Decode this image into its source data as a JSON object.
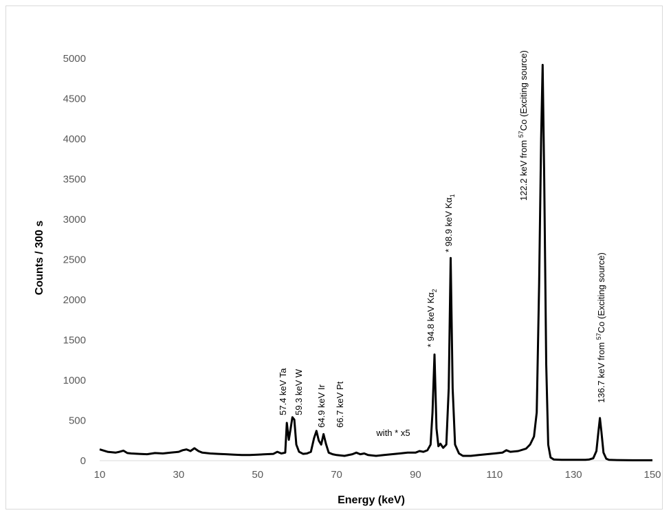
{
  "chart_data": {
    "type": "line",
    "title": "",
    "xlabel": "Energy (keV)",
    "ylabel": "Counts / 300 s",
    "xlim": [
      10,
      150
    ],
    "ylim": [
      0,
      5000
    ],
    "xticks": [
      10,
      30,
      50,
      70,
      90,
      110,
      130,
      150
    ],
    "yticks": [
      0,
      500,
      1000,
      1500,
      2000,
      2500,
      3000,
      3500,
      4000,
      4500,
      5000
    ],
    "grid": false,
    "legend": "none",
    "series_color": "#000000",
    "series": [
      {
        "x": [
          10,
          12,
          14,
          15,
          16,
          17,
          18,
          20,
          22,
          24,
          26,
          28,
          30,
          31,
          32,
          33,
          34,
          35,
          36,
          38,
          40,
          42,
          44,
          46,
          48,
          50,
          52,
          54,
          55,
          56,
          57,
          57.4,
          57.9,
          58.3,
          58.8,
          59.3,
          59.8,
          60.5,
          61.5,
          62.5,
          63.5,
          64.3,
          64.9,
          65.5,
          66.1,
          66.7,
          67.3,
          68,
          69,
          70,
          72,
          74,
          75,
          76,
          77,
          78,
          80,
          82,
          84,
          86,
          88,
          90,
          91,
          92,
          93,
          93.8,
          94.3,
          94.8,
          95.3,
          95.8,
          96.3,
          97,
          97.8,
          98.4,
          98.9,
          99.4,
          100,
          101,
          102,
          104,
          106,
          108,
          110,
          112,
          113,
          114,
          116,
          118,
          119,
          120,
          120.7,
          121.3,
          121.8,
          122.2,
          122.6,
          123.1,
          123.6,
          124.2,
          125,
          127,
          129,
          131,
          133,
          134,
          135,
          135.8,
          136.3,
          136.7,
          137.1,
          137.6,
          138.3,
          139,
          141,
          145,
          150
        ],
        "y": [
          140,
          110,
          100,
          110,
          125,
          95,
          90,
          85,
          80,
          95,
          90,
          100,
          110,
          130,
          140,
          120,
          155,
          120,
          100,
          90,
          85,
          80,
          75,
          70,
          70,
          75,
          80,
          85,
          110,
          90,
          100,
          470,
          260,
          380,
          540,
          510,
          200,
          110,
          85,
          90,
          110,
          280,
          370,
          250,
          200,
          330,
          210,
          100,
          80,
          70,
          60,
          80,
          100,
          80,
          90,
          70,
          60,
          70,
          80,
          90,
          100,
          100,
          120,
          110,
          130,
          200,
          600,
          1320,
          400,
          180,
          210,
          160,
          200,
          900,
          2520,
          900,
          200,
          90,
          60,
          60,
          70,
          80,
          90,
          100,
          130,
          110,
          120,
          150,
          200,
          300,
          600,
          2200,
          4000,
          4920,
          3500,
          1200,
          200,
          40,
          15,
          10,
          10,
          10,
          10,
          15,
          30,
          120,
          350,
          530,
          350,
          100,
          25,
          10,
          8,
          5,
          5
        ]
      }
    ],
    "annotations": [
      {
        "x": 57.4,
        "text": "57.4 keV Ta"
      },
      {
        "x": 59.3,
        "text": "59.3 keV W"
      },
      {
        "x": 64.9,
        "text": "64.9 keV Ir"
      },
      {
        "x": 66.7,
        "text": "66.7 keV Pt"
      },
      {
        "x": 94.8,
        "text": "* 94.8 keV Kα",
        "sub": "2"
      },
      {
        "x": 98.9,
        "text": "* 98.9 keV Kα",
        "sub": "1"
      },
      {
        "x": 122.2,
        "text": "122.2 keV  from ",
        "sup": "57",
        "tail": "Co (Exciting source)"
      },
      {
        "x": 136.7,
        "text": "136.7  keV  from ",
        "sup": "57",
        "tail": "Co (Exciting source)"
      },
      {
        "x": 87,
        "text": "with * x5"
      }
    ]
  }
}
